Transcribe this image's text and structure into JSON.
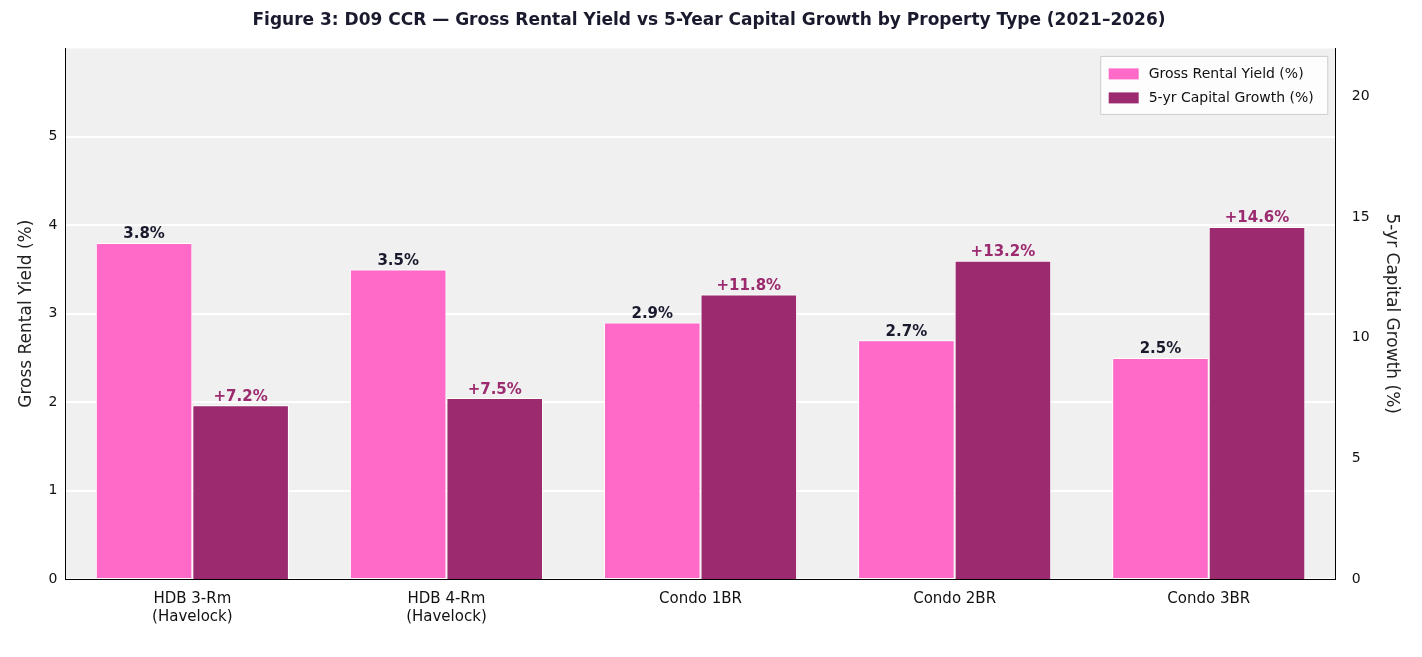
{
  "chart_data": {
    "type": "bar",
    "title": "Figure 3: D09 CCR — Gross Rental Yield vs 5-Year Capital Growth by Property Type (2021–2026)",
    "categories": [
      "HDB 3-Rm\n(Havelock)",
      "HDB 4-Rm\n(Havelock)",
      "Condo 1BR",
      "Condo 2BR",
      "Condo 3BR"
    ],
    "series": [
      {
        "name": "Gross Rental Yield (%)",
        "color": "#ff69c8",
        "values": [
          3.8,
          3.5,
          2.9,
          2.7,
          2.5
        ],
        "value_labels": [
          "3.8%",
          "3.5%",
          "2.9%",
          "2.7%",
          "2.5%"
        ]
      },
      {
        "name": "5-yr Capital Growth (%)",
        "color": "#9b2a6f",
        "axis": "y2",
        "values": [
          7.2,
          7.5,
          11.8,
          13.2,
          14.6
        ],
        "value_labels": [
          "+7.2%",
          "+7.5%",
          "+11.8%",
          "+13.2%",
          "+14.6%"
        ]
      }
    ],
    "ylabel": "Gross Rental Yield (%)",
    "y2label": "5-yr Capital Growth (%)",
    "ylim": [
      0,
      6
    ],
    "yticks": [
      0,
      1,
      2,
      3,
      4,
      5
    ],
    "y2lim": [
      0,
      22
    ],
    "y2ticks": [
      0,
      5,
      10,
      15,
      20
    ],
    "grid": "y",
    "legend": "top right"
  }
}
